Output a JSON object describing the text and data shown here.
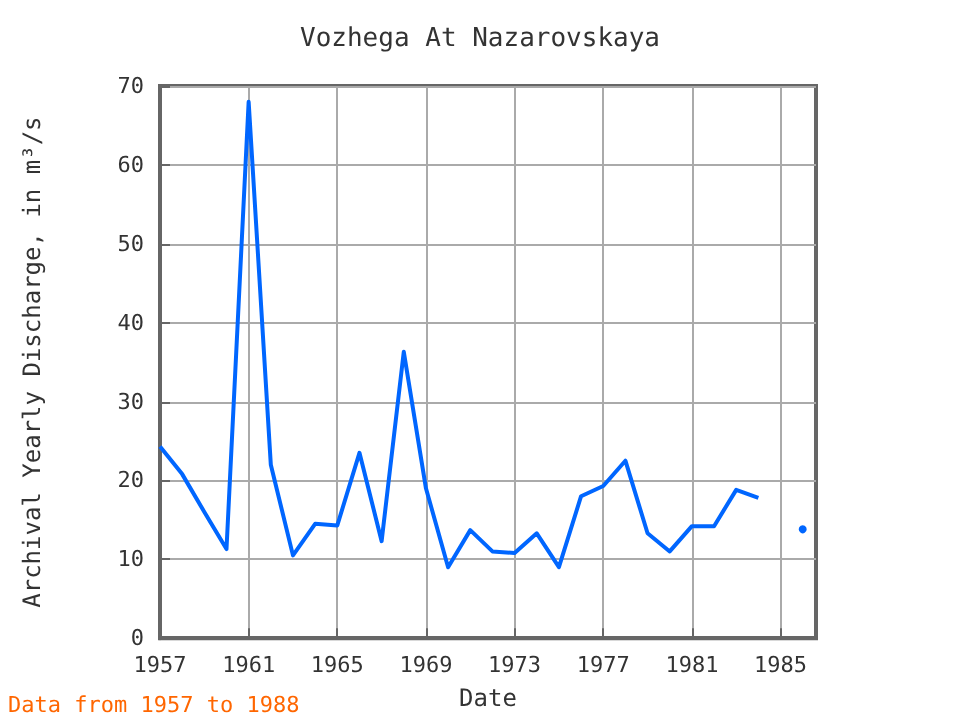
{
  "chart_data": {
    "type": "line",
    "title": "Vozhega At Nazarovskaya",
    "xlabel": "Date",
    "ylabel": "Archival Yearly Discharge, in m³/s",
    "x": [
      1957,
      1958,
      1959,
      1960,
      1961,
      1962,
      1963,
      1964,
      1965,
      1966,
      1967,
      1968,
      1969,
      1970,
      1971,
      1972,
      1973,
      1974,
      1975,
      1976,
      1977,
      1978,
      1979,
      1980,
      1981,
      1982,
      1983,
      1984,
      1985,
      1986
    ],
    "series": [
      {
        "color": "#0066ff",
        "values": [
          24.3,
          20.8,
          16,
          11.3,
          68,
          22,
          10.5,
          14.5,
          14.3,
          23.5,
          12.3,
          36.3,
          19,
          9,
          13.7,
          11,
          10.8,
          13.3,
          9,
          18,
          19.3,
          22.5,
          13.3,
          11,
          14.2,
          14.2,
          18.8,
          17.8,
          null,
          13.8
        ]
      }
    ],
    "xlim": [
      1957,
      1986.6
    ],
    "xticks": [
      1957,
      1961,
      1965,
      1969,
      1973,
      1977,
      1981,
      1985
    ],
    "ylim": [
      0,
      70
    ],
    "yticks": [
      0,
      10,
      20,
      30,
      40,
      50,
      60,
      70
    ],
    "grid": true,
    "marker": "none",
    "line_style": "solid",
    "annotations": [
      "Data from 1957 to 1988"
    ]
  }
}
